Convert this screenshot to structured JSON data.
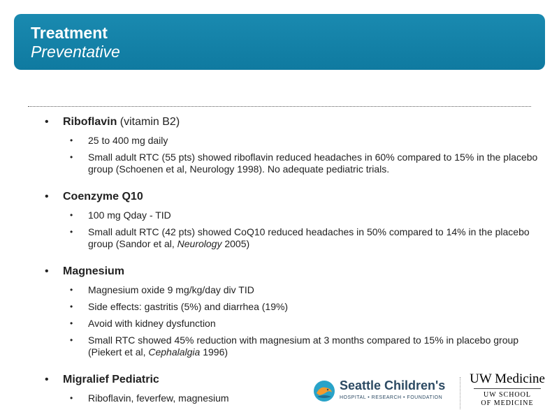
{
  "header": {
    "title": "Treatment",
    "subtitle": "Preventative"
  },
  "sections": {
    "riboflavin": {
      "name": "Riboflavin",
      "qualifier": " (vitamin B2)",
      "items": [
        "25 to 400 mg daily",
        "Small adult RTC (55 pts) showed riboflavin  reduced headaches in 60% compared to 15% in the placebo group (Schoenen et al, Neurology 1998). No adequate pediatric trials."
      ]
    },
    "coq10": {
      "name": "Coenzyme Q10",
      "items": [
        "100 mg Qday - TID",
        {
          "pre": "Small adult RTC (42 pts) showed CoQ10 reduced headaches in 50% compared to 14% in the placebo group (Sandor et al, ",
          "italic": "Neurology",
          "post": " 2005)"
        }
      ]
    },
    "magnesium": {
      "name": "Magnesium",
      "items": [
        "Magnesium oxide 9 mg/kg/day div TID",
        "Side effects: gastritis (5%) and diarrhea (19%)",
        "Avoid with kidney dysfunction",
        {
          "pre": "Small RTC showed 45% reduction with magnesium at 3 months compared to 15% in placebo group (Piekert et al, ",
          "italic": "Cephalalgia",
          "post": " 1996)"
        }
      ]
    },
    "migralief": {
      "name": "Migralief Pediatric",
      "items": [
        "Riboflavin, feverfew, magnesium"
      ]
    }
  },
  "bullet": "•",
  "logos": {
    "seattle_childrens": {
      "name": "Seattle Children's",
      "tagline": "HOSPITAL • RESEARCH • FOUNDATION"
    },
    "uw": {
      "name": "UW Medicine",
      "line1": "UW SCHOOL",
      "line2": "OF MEDICINE"
    }
  },
  "colors": {
    "header_bg": "#1483aa",
    "header_text": "#ffffff"
  }
}
